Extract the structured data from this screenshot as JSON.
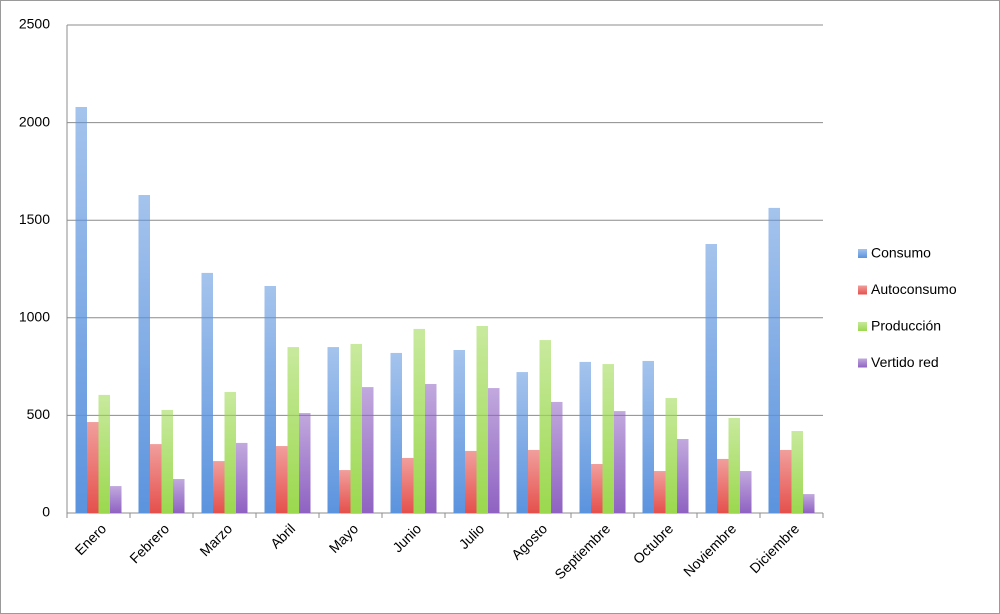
{
  "chart_data": {
    "type": "bar",
    "categories": [
      "Enero",
      "Febrero",
      "Marzo",
      "Abril",
      "Mayo",
      "Junio",
      "Julio",
      "Agosto",
      "Septiembre",
      "Octubre",
      "Noviembre",
      "Diciembre"
    ],
    "series": [
      {
        "name": "Consumo",
        "color": "#5b93de",
        "values": [
          2080,
          1629,
          1230,
          1163,
          850,
          820,
          835,
          722,
          774,
          779,
          1378,
          1563
        ]
      },
      {
        "name": "Autoconsumo",
        "color": "#e5504c",
        "values": [
          466,
          353,
          266,
          343,
          220,
          282,
          318,
          323,
          251,
          215,
          277,
          323
        ]
      },
      {
        "name": "Producción",
        "color": "#9bd84e",
        "values": [
          605,
          528,
          620,
          850,
          866,
          943,
          958,
          886,
          763,
          589,
          487,
          420
        ]
      },
      {
        "name": "Vertido red",
        "color": "#8f62c2",
        "values": [
          138,
          174,
          359,
          512,
          645,
          661,
          640,
          569,
          522,
          379,
          215,
          97
        ]
      }
    ],
    "ylim": [
      0,
      2500
    ],
    "yticks": [
      0,
      500,
      1000,
      1500,
      2000,
      2500
    ],
    "grid": true,
    "legend": "right"
  }
}
